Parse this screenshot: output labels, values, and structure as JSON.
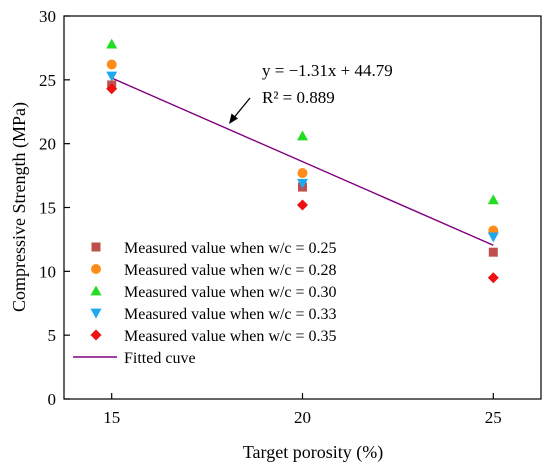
{
  "chart_data": {
    "type": "scatter",
    "xlabel": "Target porosity (%)",
    "ylabel": "Compressive Strength (MPa)",
    "xlim": [
      13.75,
      26.25
    ],
    "ylim": [
      0,
      30
    ],
    "xticks": [
      15,
      20,
      25
    ],
    "yticks": [
      0,
      5,
      10,
      15,
      20,
      25,
      30
    ],
    "grid": false,
    "legend_position": "bottom-left",
    "series": [
      {
        "name": "Measured value when w/c = 0.25",
        "marker": "square",
        "color": "#c0504d",
        "x": [
          15,
          20,
          25
        ],
        "y": [
          24.6,
          16.6,
          11.5
        ]
      },
      {
        "name": "Measured value when w/c = 0.28",
        "marker": "circle",
        "color": "#ff8c1a",
        "x": [
          15,
          20,
          25
        ],
        "y": [
          26.2,
          17.7,
          13.2
        ]
      },
      {
        "name": "Measured value when w/c = 0.30",
        "marker": "triangle-up",
        "color": "#22dd22",
        "x": [
          15,
          20,
          25
        ],
        "y": [
          27.8,
          20.6,
          15.6
        ]
      },
      {
        "name": "Measured value when w/c = 0.33",
        "marker": "triangle-down",
        "color": "#1ea8f0",
        "x": [
          15,
          20,
          25
        ],
        "y": [
          25.3,
          16.9,
          12.7
        ]
      },
      {
        "name": "Measured value when w/c = 0.35",
        "marker": "diamond",
        "color": "#ee1111",
        "x": [
          15,
          20,
          25
        ],
        "y": [
          24.3,
          15.2,
          9.5
        ]
      }
    ],
    "fit_line": {
      "name": "Fitted cuve",
      "color": "#800080",
      "slope": -1.31,
      "intercept": 44.79,
      "x_range": [
        15,
        25
      ]
    },
    "annotation": {
      "equation": "y = −1.31x + 44.79",
      "r_squared": "R² = 0.889"
    }
  }
}
